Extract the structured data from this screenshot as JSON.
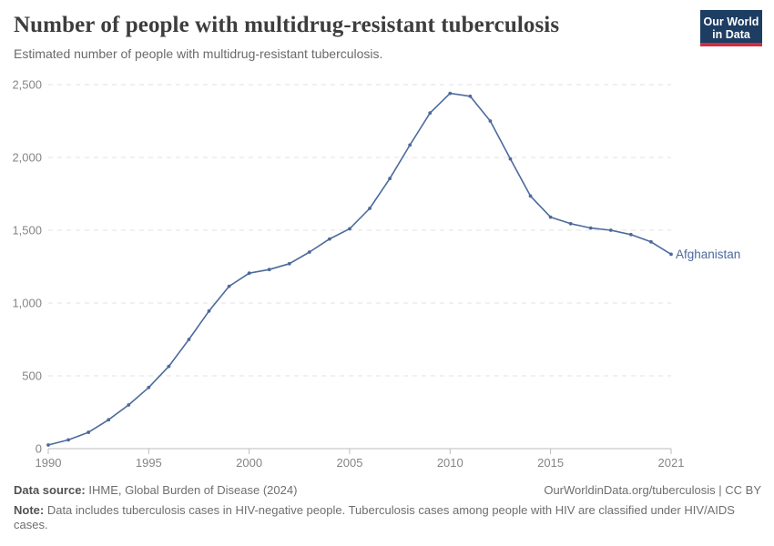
{
  "header": {
    "title": "Number of people with multidrug-resistant tuberculosis",
    "subtitle": "Estimated number of people with multidrug-resistant tuberculosis.",
    "logo": {
      "line1": "Our World",
      "line2": "in Data",
      "bg_color": "#1d3d63",
      "bar_color": "#cf2e41"
    }
  },
  "chart_data": {
    "type": "line",
    "title": "Number of people with multidrug-resistant tuberculosis",
    "subtitle": "Estimated number of people with multidrug-resistant tuberculosis.",
    "xlabel": "",
    "ylabel": "",
    "xlim": [
      1990,
      2021
    ],
    "ylim": [
      0,
      2500
    ],
    "grid": "horizontal-dashed",
    "legend_position": "end-of-line",
    "x_ticks": [
      1990,
      1995,
      2000,
      2005,
      2010,
      2015,
      2021
    ],
    "y_ticks": [
      0,
      500,
      1000,
      1500,
      2000,
      2500
    ],
    "y_tick_labels": [
      "0",
      "500",
      "1,000",
      "1,500",
      "2,000",
      "2,500"
    ],
    "series": [
      {
        "name": "Afghanistan",
        "color": "#4c6a9c",
        "x": [
          1990,
          1991,
          1992,
          1993,
          1994,
          1995,
          1996,
          1997,
          1998,
          1999,
          2000,
          2001,
          2002,
          2003,
          2004,
          2005,
          2006,
          2007,
          2008,
          2009,
          2010,
          2011,
          2012,
          2013,
          2014,
          2015,
          2016,
          2017,
          2018,
          2019,
          2020,
          2021
        ],
        "values": [
          25,
          60,
          112,
          198,
          300,
          420,
          565,
          750,
          945,
          1115,
          1205,
          1230,
          1270,
          1350,
          1440,
          1510,
          1650,
          1855,
          2085,
          2305,
          2440,
          2420,
          2250,
          1990,
          1735,
          1590,
          1545,
          1515,
          1500,
          1470,
          1420,
          1335
        ]
      }
    ],
    "colors": {
      "gridline": "#e2e2e2",
      "axis": "#bdbdbd",
      "tick_label": "#858585"
    }
  },
  "footer": {
    "source_label": "Data source:",
    "source_text": " IHME, Global Burden of Disease (2024)",
    "link": "OurWorldinData.org/tuberculosis | CC BY",
    "note_label": "Note:",
    "note_text": " Data includes tuberculosis cases in HIV-negative people. Tuberculosis cases among people with HIV are classified under HIV/AIDS cases."
  }
}
